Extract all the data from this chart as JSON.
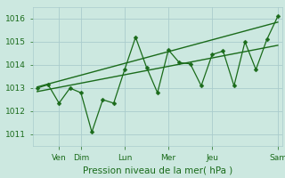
{
  "title": "",
  "xlabel": "Pression niveau de la mer( hPa )",
  "bg_color": "#cce8e0",
  "line_color": "#1a6b1a",
  "grid_color": "#aacccc",
  "ylim": [
    1010.5,
    1016.5
  ],
  "yticks": [
    1011,
    1012,
    1013,
    1014,
    1015,
    1016
  ],
  "xlim": [
    -0.2,
    11.2
  ],
  "data_x": [
    0,
    0.5,
    1.0,
    1.5,
    2.0,
    2.5,
    3.0,
    3.5,
    4.0,
    4.5,
    5.0,
    5.5,
    6.0,
    6.5,
    7.0,
    7.5,
    8.0,
    8.5,
    9.0,
    9.5,
    10.0,
    10.5,
    11.0
  ],
  "data_y": [
    1013.0,
    1013.15,
    1012.35,
    1013.0,
    1012.8,
    1011.1,
    1012.5,
    1012.35,
    1013.8,
    1015.2,
    1013.9,
    1012.8,
    1014.65,
    1014.1,
    1014.05,
    1013.1,
    1014.45,
    1014.6,
    1013.1,
    1015.0,
    1013.8,
    1015.1,
    1016.1
  ],
  "trend_lower": [
    1012.85,
    1014.85
  ],
  "trend_upper": [
    1013.05,
    1015.85
  ],
  "trend_x": [
    0,
    11
  ],
  "day_positions": [
    1,
    2,
    4,
    6,
    8,
    11
  ],
  "day_labels": [
    "Ven",
    "Dim",
    "Lun",
    "Mer",
    "Jeu",
    "Sam"
  ],
  "xlabel_fontsize": 7.5,
  "tick_fontsize": 6.5,
  "ytick_fontsize": 6.5
}
